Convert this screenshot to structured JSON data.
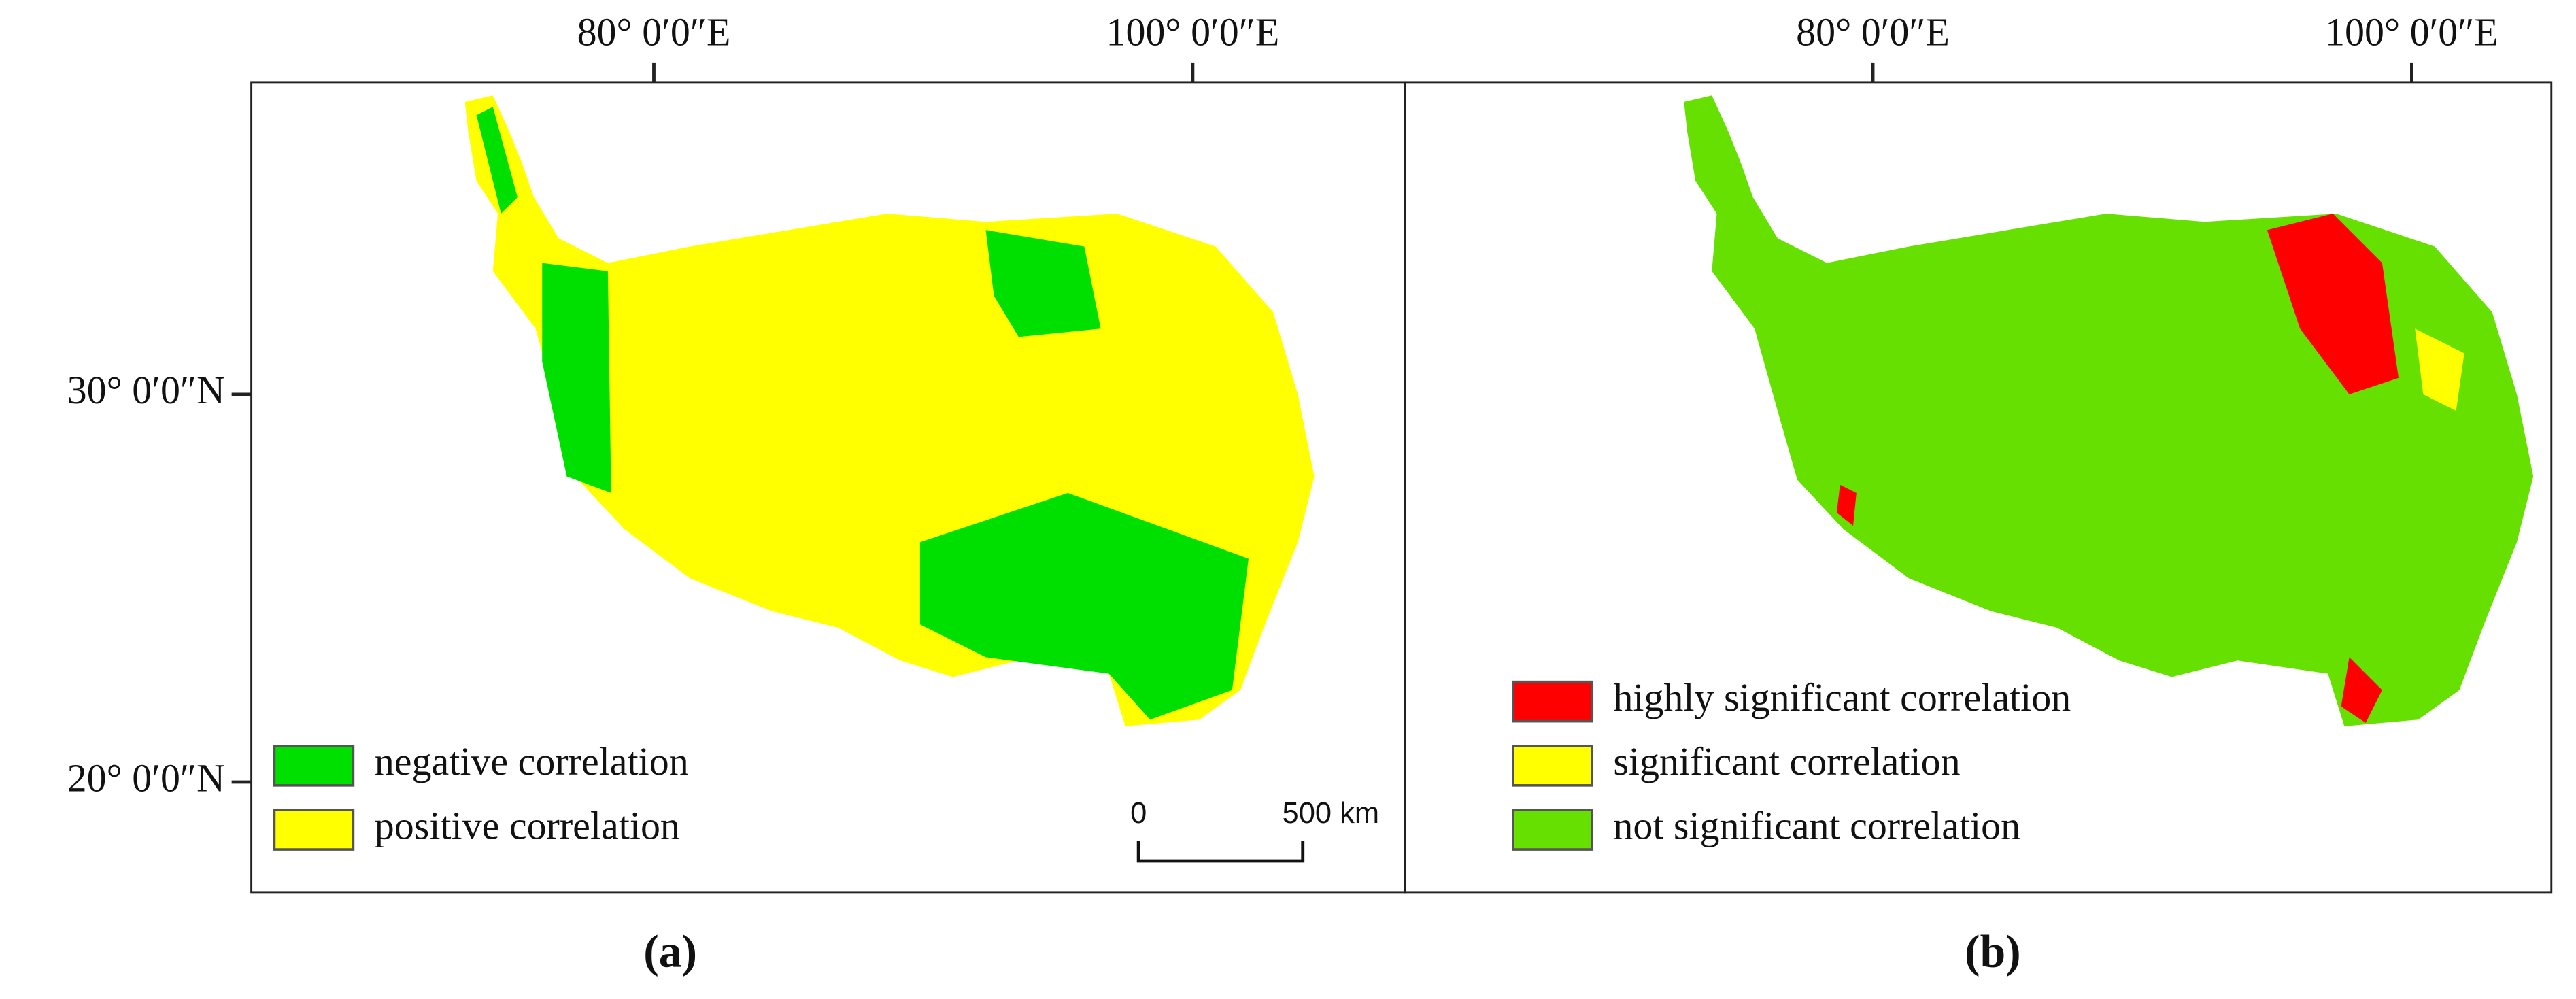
{
  "panels": [
    {
      "caption": "(a)",
      "top_labels": [
        "80° 0′0″E",
        "100° 0′0″E"
      ],
      "left_labels": [
        "30° 0′0″N",
        "20° 0′0″N"
      ],
      "legend": [
        {
          "label": "negative correlation",
          "color": "#00e000"
        },
        {
          "label": "positive correlation",
          "color": "#ffff00"
        }
      ],
      "scale_bar": {
        "start": "0",
        "end": "500 km"
      }
    },
    {
      "caption": "(b)",
      "top_labels": [
        "80° 0′0″E",
        "100° 0′0″E"
      ],
      "legend": [
        {
          "label": "highly significant correlation",
          "color": "#ff0000"
        },
        {
          "label": "significant correlation",
          "color": "#ffff00"
        },
        {
          "label": "not significant correlation",
          "color": "#66e000"
        }
      ]
    }
  ]
}
